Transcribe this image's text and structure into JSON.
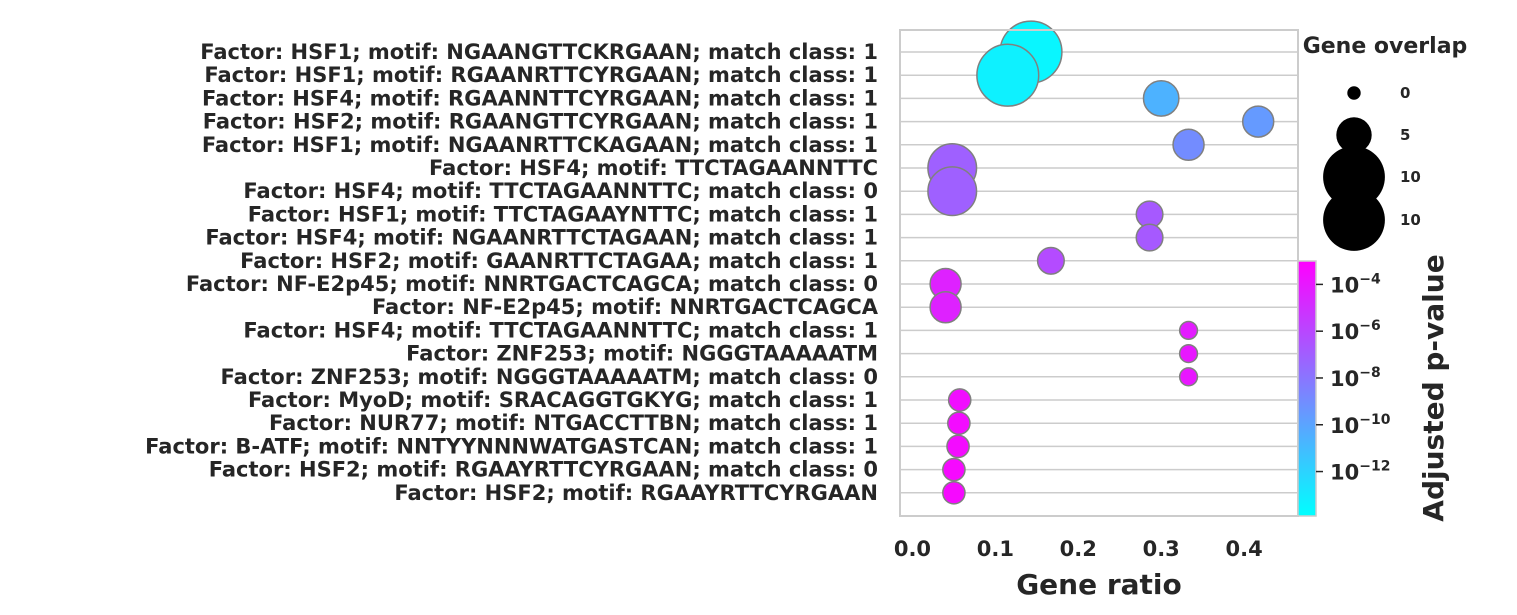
{
  "chart_data": {
    "type": "scatter",
    "xlabel": "Gene ratio",
    "xlim": [
      -0.015,
      0.465
    ],
    "xticks": [
      "0.0",
      "0.1",
      "0.2",
      "0.3",
      "0.4"
    ],
    "xtick_values": [
      0.0,
      0.1,
      0.2,
      0.3,
      0.4
    ],
    "grid": "horizontal",
    "points": [
      {
        "label": "Factor: HSF1; motif: NGAANGTTCKRGAAN; match class: 1",
        "gene_ratio": 0.143,
        "gene_overlap": 12,
        "adj_pvalue_log10": -13.5
      },
      {
        "label": "Factor: HSF1; motif: RGAANRTTCYRGAAN; match class: 1",
        "gene_ratio": 0.115,
        "gene_overlap": 12,
        "adj_pvalue_log10": -13.3
      },
      {
        "label": "Factor: HSF4; motif: RGAANNTTCYRGAAN; match class: 1",
        "gene_ratio": 0.3,
        "gene_overlap": 6,
        "adj_pvalue_log10": -10.6
      },
      {
        "label": "Factor: HSF2; motif: RGAANGTTCYRGAAN; match class: 1",
        "gene_ratio": 0.417,
        "gene_overlap": 5,
        "adj_pvalue_log10": -9.6
      },
      {
        "label": "Factor: HSF1; motif: NGAANRTTCKAGAAN; match class: 1",
        "gene_ratio": 0.333,
        "gene_overlap": 5,
        "adj_pvalue_log10": -9.0
      },
      {
        "label": "Factor: HSF4; motif: TTCTAGAANNTTC",
        "gene_ratio": 0.048,
        "gene_overlap": 9,
        "adj_pvalue_log10": -7.1
      },
      {
        "label": "Factor: HSF4; motif: TTCTAGAANNTTC; match class: 0",
        "gene_ratio": 0.048,
        "gene_overlap": 9,
        "adj_pvalue_log10": -7.1
      },
      {
        "label": "Factor: HSF1; motif: TTCTAGAAYNTTC; match class: 1",
        "gene_ratio": 0.286,
        "gene_overlap": 4,
        "adj_pvalue_log10": -6.8
      },
      {
        "label": "Factor: HSF4; motif: NGAANRTTCTAGAAN; match class: 1",
        "gene_ratio": 0.286,
        "gene_overlap": 4,
        "adj_pvalue_log10": -6.8
      },
      {
        "label": "Factor: HSF2; motif: GAANRTTCTAGAA; match class: 1",
        "gene_ratio": 0.167,
        "gene_overlap": 4,
        "adj_pvalue_log10": -6.2
      },
      {
        "label": "Factor: NF-E2p45; motif: NNRTGACTCAGCA; match class: 0",
        "gene_ratio": 0.04,
        "gene_overlap": 5,
        "adj_pvalue_log10": -4.4
      },
      {
        "label": "Factor: NF-E2p45; motif: NNRTGACTCAGCA",
        "gene_ratio": 0.04,
        "gene_overlap": 5,
        "adj_pvalue_log10": -4.4
      },
      {
        "label": "Factor: HSF4; motif: TTCTAGAANNTTC; match class: 1",
        "gene_ratio": 0.333,
        "gene_overlap": 2,
        "adj_pvalue_log10": -4.2
      },
      {
        "label": "Factor: ZNF253; motif: NGGGTAAAAATM",
        "gene_ratio": 0.333,
        "gene_overlap": 2,
        "adj_pvalue_log10": -4.0
      },
      {
        "label": "Factor: ZNF253; motif: NGGGTAAAAATM; match class: 0",
        "gene_ratio": 0.333,
        "gene_overlap": 2,
        "adj_pvalue_log10": -4.0
      },
      {
        "label": "Factor: MyoD; motif: SRACAGGTGKYG; match class: 1",
        "gene_ratio": 0.057,
        "gene_overlap": 3,
        "adj_pvalue_log10": -3.6
      },
      {
        "label": "Factor: NUR77; motif: NTGACCTTBN; match class: 1",
        "gene_ratio": 0.056,
        "gene_overlap": 3,
        "adj_pvalue_log10": -3.5
      },
      {
        "label": "Factor: B-ATF; motif: NNTYYNNNWATGASTCAN; match class: 1",
        "gene_ratio": 0.055,
        "gene_overlap": 3,
        "adj_pvalue_log10": -3.5
      },
      {
        "label": "Factor: HSF2; motif: RGAAYRTTCYRGAAN; match class: 0",
        "gene_ratio": 0.05,
        "gene_overlap": 3,
        "adj_pvalue_log10": -3.4
      },
      {
        "label": "Factor: HSF2; motif: RGAAYRTTCYRGAAN",
        "gene_ratio": 0.05,
        "gene_overlap": 3,
        "adj_pvalue_log10": -3.4
      }
    ],
    "size_legend": {
      "title": "Gene overlap",
      "entries": [
        "0",
        "5",
        "10",
        "10"
      ],
      "sizes": [
        1,
        6,
        12,
        12
      ]
    },
    "colorbar": {
      "title": "Adjusted p-value",
      "colormap": "cool",
      "color_low": "#00ffff",
      "color_high": "#ff00ff",
      "log_min": -13.9,
      "log_max": -3.0,
      "tick_exponents": [
        -4,
        -6,
        -8,
        -10,
        -12
      ],
      "tick_base": "10"
    },
    "marker_edge_color": "#808080",
    "grid_color": "#cccccc",
    "spine_color": "#cccccc"
  }
}
